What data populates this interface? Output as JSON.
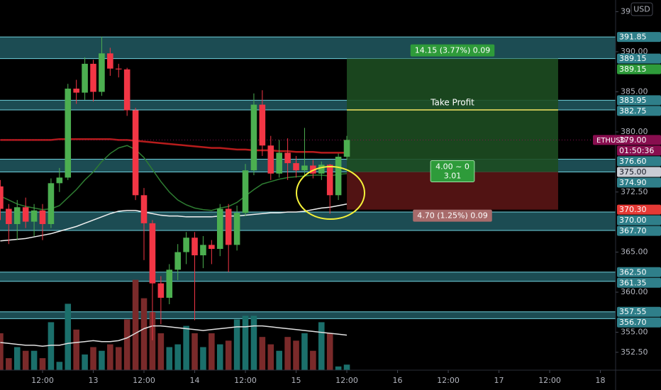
{
  "chart_data": {
    "type": "candlestick",
    "symbol": "ETHUSD",
    "currency": "USD",
    "colors": {
      "up": "#4caf50",
      "down": "#f23645",
      "volume_up": "#1b6f6b",
      "volume_down": "#7a2a2a",
      "zone": "#2f7f8a",
      "zone_edge": "#6fd0dc",
      "price": "#880e4f"
    },
    "x": [
      -10,
      -8,
      -6,
      -4,
      -2,
      0,
      2,
      4,
      6,
      8,
      10,
      12,
      14,
      16,
      18,
      20,
      22,
      24,
      26,
      28,
      30,
      32,
      34,
      36,
      38,
      40,
      42,
      44,
      46,
      48,
      50,
      52,
      54,
      56,
      58,
      60,
      62,
      64,
      66,
      68,
      70,
      72
    ],
    "open": [
      373.2,
      370.4,
      368.5,
      370.6,
      368.8,
      370.2,
      368.5,
      373.6,
      374.3,
      385.4,
      384.9,
      388.5,
      385,
      389.8,
      387.9,
      387.8,
      382.7,
      372.1,
      368.6,
      361.1,
      359.3,
      362.8,
      365,
      366.8,
      364.6,
      365.9,
      365.4,
      370.4,
      365.9,
      369.9,
      375.2,
      383.4,
      378.3,
      374.8,
      377.4,
      376.1,
      375.2,
      375.8,
      374.8,
      375.9,
      372.1,
      376.9
    ],
    "high": [
      374,
      371,
      371.5,
      371.8,
      371,
      371,
      374.2,
      375.5,
      386,
      386.5,
      389.3,
      389,
      391.9,
      390.5,
      388.5,
      388,
      383,
      373,
      369,
      362,
      363.5,
      366,
      367.5,
      367.5,
      367,
      366.5,
      371,
      371,
      370.8,
      376,
      384.8,
      385.2,
      379.5,
      379,
      379.2,
      377,
      380.5,
      376.5,
      376.3,
      376,
      377.3,
      379.5
    ],
    "low": [
      369,
      366,
      366.5,
      368,
      367,
      366.5,
      368,
      372.5,
      374,
      383.5,
      384,
      383.8,
      384.5,
      387,
      386.8,
      382,
      371.5,
      364,
      354,
      356,
      358.5,
      361.5,
      363.5,
      356.5,
      363,
      363.5,
      364.5,
      362.5,
      365.2,
      369.5,
      374.6,
      377,
      374,
      374.3,
      374,
      374.3,
      374.6,
      374.2,
      374,
      369.8,
      371.5,
      376.5
    ],
    "close": [
      370.4,
      368.5,
      370.6,
      368.8,
      370.2,
      368.5,
      373.6,
      374.3,
      385.4,
      384.9,
      388.5,
      385,
      389.8,
      387.9,
      387.8,
      382.7,
      372.1,
      368.6,
      361.1,
      359.3,
      362.8,
      365,
      366.8,
      364.6,
      365.9,
      365.4,
      370.4,
      365.9,
      369.9,
      375.2,
      383.4,
      378.3,
      374.8,
      377.4,
      376.1,
      375.2,
      375.8,
      374.8,
      375.9,
      372.1,
      376.9,
      379
    ],
    "moving_averages": [
      {
        "color": "#b71c1c",
        "values": [
          379,
          379,
          379,
          379,
          379,
          379,
          379,
          379.1,
          379.1,
          379.1,
          379.1,
          379.1,
          379.1,
          379.1,
          379,
          379,
          378.9,
          378.8,
          378.7,
          378.6,
          378.5,
          378.4,
          378.3,
          378.2,
          378.1,
          378,
          378,
          377.9,
          377.8,
          377.8,
          377.7,
          377.7,
          377.7,
          377.6,
          377.6,
          377.5,
          377.5,
          377.5,
          377.4,
          377.4,
          377.4,
          377.4
        ]
      },
      {
        "color": "#2e7d32",
        "values": [
          372,
          371.5,
          371,
          370.7,
          370.5,
          370.3,
          370.4,
          370.8,
          371.8,
          372.8,
          374,
          375,
          376.3,
          377.3,
          378,
          378.3,
          377.8,
          376.8,
          375.3,
          373.8,
          372.5,
          371.5,
          370.9,
          370.5,
          370.3,
          370.2,
          370.5,
          370.7,
          371.2,
          372,
          372.8,
          373.5,
          373.8,
          374.1,
          374.3,
          374.4,
          374.5,
          374.6,
          374.6,
          374.5,
          374.7,
          374.8
        ]
      },
      {
        "color": "#f0f0f0",
        "values": [
          366.4,
          366.5,
          366.6,
          366.7,
          366.9,
          367.1,
          367.3,
          367.6,
          367.9,
          368.2,
          368.6,
          369,
          369.4,
          369.8,
          370.1,
          370.2,
          370.2,
          370,
          369.8,
          369.6,
          369.5,
          369.5,
          369.4,
          369.4,
          369.4,
          369.4,
          369.5,
          369.5,
          369.5,
          369.6,
          369.7,
          369.8,
          369.9,
          369.9,
          370,
          370,
          370.1,
          370.3,
          370.5,
          370.6,
          370.8,
          371
        ]
      }
    ],
    "volume": {
      "vlim": [
        0,
        100
      ],
      "values": [
        40,
        13,
        25,
        21,
        21,
        13,
        52,
        9,
        72,
        44,
        17,
        25,
        21,
        28,
        25,
        55,
        98,
        78,
        63,
        40,
        25,
        28,
        48,
        40,
        25,
        40,
        28,
        32,
        55,
        59,
        59,
        36,
        28,
        21,
        36,
        32,
        40,
        21,
        52,
        40,
        4,
        6
      ],
      "ma_color": "#e0e0e0",
      "ma_values": [
        30,
        29,
        28,
        27,
        27,
        26,
        27,
        27,
        29,
        30,
        31,
        32,
        31,
        31,
        32,
        35,
        40,
        45,
        48,
        48,
        47,
        46,
        45,
        44,
        43,
        44,
        45,
        46,
        47,
        47,
        48,
        48,
        47,
        46,
        45,
        44,
        43,
        42,
        41,
        40,
        39,
        38
      ]
    },
    "xlim": [
      -10.07,
      135.6
    ],
    "xticks": [
      {
        "value": 0,
        "label": "12:00"
      },
      {
        "value": 12,
        "label": "13"
      },
      {
        "value": 24,
        "label": "12:00"
      },
      {
        "value": 36,
        "label": "14"
      },
      {
        "value": 48,
        "label": "12:00"
      },
      {
        "value": 60,
        "label": "15"
      },
      {
        "value": 72,
        "label": "12:00"
      },
      {
        "value": 84,
        "label": "16"
      },
      {
        "value": 96,
        "label": "12:00"
      },
      {
        "value": 108,
        "label": "17"
      },
      {
        "value": 120,
        "label": "12:00"
      },
      {
        "value": 132,
        "label": "18"
      }
    ],
    "ylim": [
      350.27,
      396.46
    ],
    "yticks": [
      {
        "value": 395,
        "label": "395.00"
      },
      {
        "value": 390,
        "label": "390.00"
      },
      {
        "value": 385,
        "label": "385.00"
      },
      {
        "value": 380,
        "label": "380.00"
      },
      {
        "value": 372.5,
        "label": "372.50"
      },
      {
        "value": 365,
        "label": "365.00"
      },
      {
        "value": 360,
        "label": "360.00"
      },
      {
        "value": 355,
        "label": "355.00"
      },
      {
        "value": 352.5,
        "label": "352.50"
      }
    ],
    "grid": false,
    "zones": [
      [
        391.85,
        389.15
      ],
      [
        383.95,
        382.75
      ],
      [
        376.6,
        375
      ],
      [
        370,
        367.7
      ],
      [
        362.5,
        361.35
      ],
      [
        357.55,
        356.7
      ]
    ],
    "price_tags": [
      {
        "value": 391.85,
        "label": "391.85",
        "color": "#2f7f8a"
      },
      {
        "value": 389.15,
        "label": "389.15",
        "color": "#2f7f8a"
      },
      {
        "value": 389.15,
        "label": "389.15",
        "color": "#2e9b3a"
      },
      {
        "value": 383.95,
        "label": "383.95",
        "color": "#2f7f8a"
      },
      {
        "value": 382.75,
        "label": "382.75",
        "color": "#2f7f8a"
      },
      {
        "value": 379,
        "label": "379.00",
        "color": "#880e4f",
        "name": "ETHUSD",
        "countdown": "01:50:36"
      },
      {
        "value": 376.6,
        "label": "376.60",
        "color": "#2f7f8a"
      },
      {
        "value": 375,
        "label": "375.00",
        "color": "#c9ccd4",
        "text_color": "#131722"
      },
      {
        "value": 374.9,
        "label": "374.90",
        "color": "#2f7f8a"
      },
      {
        "value": 370.3,
        "label": "370.30",
        "color": "#e53935"
      },
      {
        "value": 370,
        "label": "370.00",
        "color": "#2f7f8a"
      },
      {
        "value": 367.7,
        "label": "367.70",
        "color": "#2f7f8a"
      },
      {
        "value": 362.5,
        "label": "362.50",
        "color": "#2f7f8a"
      },
      {
        "value": 361.35,
        "label": "361.35",
        "color": "#2f7f8a"
      },
      {
        "value": 357.55,
        "label": "357.55",
        "color": "#2f7f8a"
      },
      {
        "value": 356.7,
        "label": "356.70",
        "color": "#2f7f8a"
      }
    ],
    "position": {
      "x": [
        72,
        122
      ],
      "entry": 375,
      "take_profit": 389.15,
      "stop_loss": 370.3,
      "profit_color": "#1d4d21",
      "loss_color": "#5a1515",
      "target_label": "14.15 (3.77%) 0.09",
      "center_label": [
        "4.00 ~ 0",
        "3.01"
      ],
      "stop_label": "4.70 (1.25%) 0.09",
      "tp_line": {
        "value": 382.75,
        "label": "Take Profit",
        "color": "#f5e663"
      }
    }
  }
}
